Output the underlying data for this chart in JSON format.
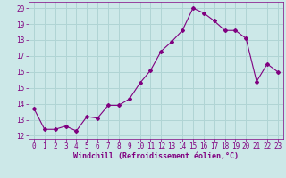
{
  "x": [
    0,
    1,
    2,
    3,
    4,
    5,
    6,
    7,
    8,
    9,
    10,
    11,
    12,
    13,
    14,
    15,
    16,
    17,
    18,
    19,
    20,
    21,
    22,
    23
  ],
  "y": [
    13.7,
    12.4,
    12.4,
    12.6,
    12.3,
    13.2,
    13.1,
    13.9,
    13.9,
    14.3,
    15.3,
    16.1,
    17.3,
    17.9,
    18.6,
    20.0,
    19.7,
    19.2,
    18.6,
    18.6,
    18.1,
    15.4,
    16.5,
    16.0
  ],
  "line_color": "#800080",
  "marker": "D",
  "marker_size": 2,
  "bg_color": "#cce8e8",
  "grid_color": "#b0d4d4",
  "xlabel": "Windchill (Refroidissement éolien,°C)",
  "xlabel_color": "#800080",
  "xlabel_fontsize": 6,
  "tick_color": "#800080",
  "tick_fontsize": 5.5,
  "ylim": [
    11.8,
    20.4
  ],
  "xlim": [
    -0.5,
    23.5
  ],
  "yticks": [
    12,
    13,
    14,
    15,
    16,
    17,
    18,
    19,
    20
  ],
  "xticks": [
    0,
    1,
    2,
    3,
    4,
    5,
    6,
    7,
    8,
    9,
    10,
    11,
    12,
    13,
    14,
    15,
    16,
    17,
    18,
    19,
    20,
    21,
    22,
    23
  ]
}
